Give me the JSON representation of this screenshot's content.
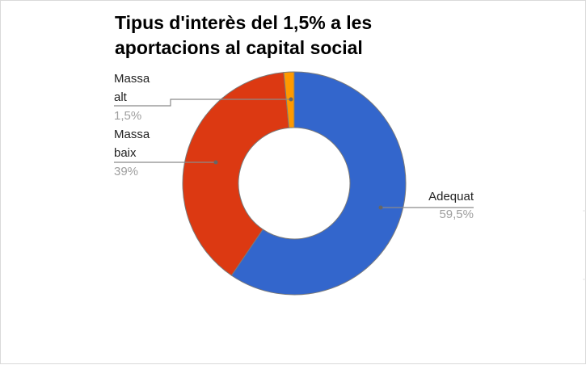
{
  "colors": {
    "background": "#ffffff",
    "slice_stroke": "#7a7a7a",
    "leader": "#8a8a8a",
    "label_name": "#222222",
    "label_value": "#9e9e9e"
  },
  "chart_data": {
    "type": "pie",
    "donut": true,
    "title": "Tipus d'interès del 1,5% a les aportacions al capital social",
    "legend": "none",
    "labels_position": "outside with leader lines",
    "slices": [
      {
        "label": "Adequat",
        "label_lines": [
          "Adequat"
        ],
        "value": 59.5,
        "value_label": "59,5%",
        "color": "#3366cc"
      },
      {
        "label": "Massa baix",
        "label_lines": [
          "Massa",
          "baix"
        ],
        "value": 39,
        "value_label": "39%",
        "color": "#dc3912"
      },
      {
        "label": "Massa alt",
        "label_lines": [
          "Massa",
          "alt"
        ],
        "value": 1.5,
        "value_label": "1,5%",
        "color": "#ff9900"
      }
    ]
  }
}
